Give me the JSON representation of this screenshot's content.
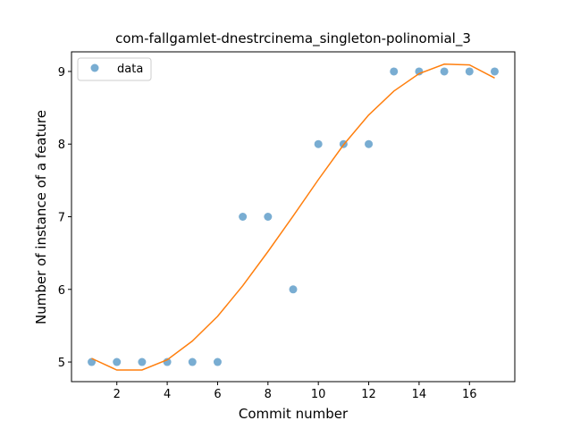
{
  "chart_data": {
    "type": "scatter",
    "title": "com-fallgamlet-dnestrcinema_singleton-polinomial_3",
    "xlabel": "Commit number",
    "ylabel": "Number of instance of a feature",
    "xlim": [
      0.2,
      17.8
    ],
    "ylim": [
      4.73,
      9.27
    ],
    "xticks": [
      2,
      4,
      6,
      8,
      10,
      12,
      14,
      16
    ],
    "yticks": [
      5,
      6,
      7,
      8,
      9
    ],
    "grid": false,
    "legend_position": "upper-left",
    "series": [
      {
        "name": "data",
        "kind": "scatter",
        "color": "#1f77b4",
        "x": [
          1,
          2,
          3,
          4,
          5,
          6,
          7,
          8,
          9,
          10,
          11,
          12,
          13,
          14,
          15,
          16,
          17
        ],
        "y": [
          5,
          5,
          5,
          5,
          5,
          5,
          7,
          7,
          6,
          8,
          8,
          8,
          9,
          9,
          9,
          9,
          9
        ]
      },
      {
        "kind": "line",
        "color": "#ff7f0e",
        "x": [
          1,
          2,
          3,
          4,
          5,
          6,
          7,
          8,
          9,
          10,
          11,
          12,
          13,
          14,
          15,
          16,
          17
        ],
        "y": [
          5.05,
          4.89,
          4.89,
          5.03,
          5.29,
          5.63,
          6.05,
          6.52,
          7.01,
          7.51,
          7.99,
          8.4,
          8.73,
          8.97,
          9.1,
          9.09,
          8.91
        ]
      }
    ]
  }
}
